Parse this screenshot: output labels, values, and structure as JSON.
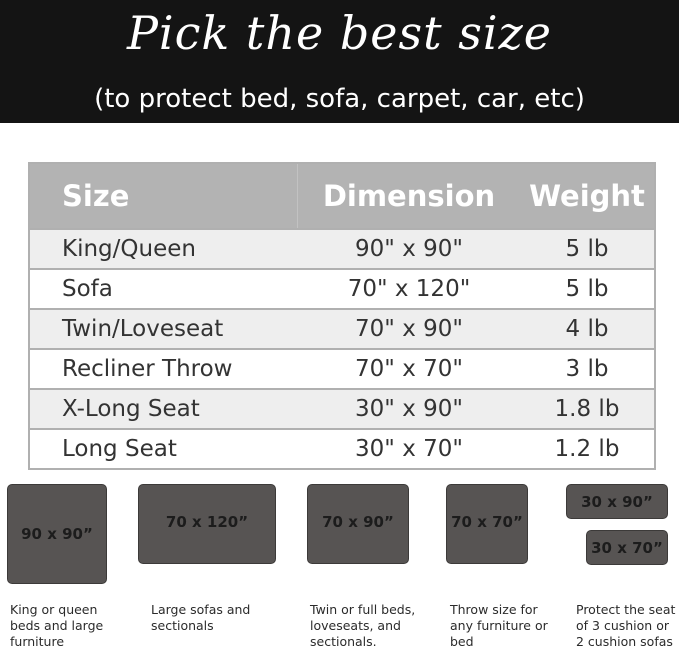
{
  "banner": {
    "title": "Pick the best size",
    "subtitle": "(to protect bed, sofa, carpet, car, etc)"
  },
  "table": {
    "headers": [
      "Size",
      "Dimension",
      "Weight"
    ],
    "rows": [
      [
        "King/Queen",
        "90\" x 90\"",
        "5 lb"
      ],
      [
        "Sofa",
        "70\" x 120\"",
        "5 lb"
      ],
      [
        "Twin/Loveseat",
        "70\" x 90\"",
        "4 lb"
      ],
      [
        "Recliner Throw",
        "70\" x 70\"",
        "3 lb"
      ],
      [
        "X-Long Seat",
        "30\" x 90\"",
        "1.8 lb"
      ],
      [
        "Long Seat",
        "30\" x 70\"",
        "1.2 lb"
      ]
    ]
  },
  "swatches": [
    {
      "label": "90 x 90”",
      "desc": "King or queen beds and large furniture"
    },
    {
      "label": "70 x 120”",
      "desc": "Large sofas and sectionals"
    },
    {
      "label": "70 x 90”",
      "desc": "Twin or full beds, loveseats, and sectionals."
    },
    {
      "label": "70 x 70”",
      "desc": "Throw size for any furniture or bed"
    },
    {
      "label": "30 x 90”",
      "desc": "Protect the seat of 3 cushion or 2 cushion sofas"
    },
    {
      "label": "30 x 70”"
    }
  ],
  "colors": {
    "banner": "#141414",
    "header": "#b3b3b3",
    "mat": "#575453"
  }
}
